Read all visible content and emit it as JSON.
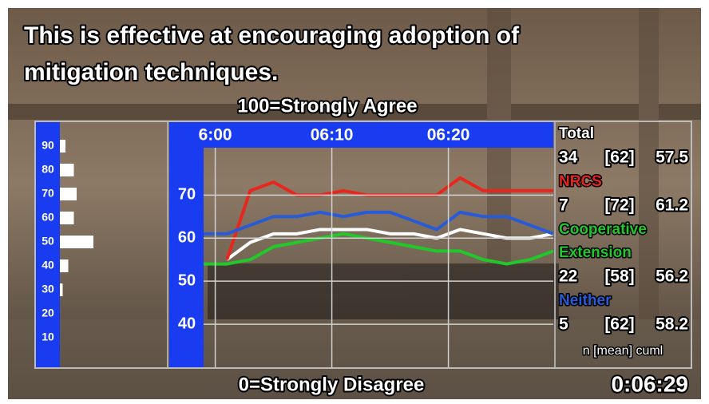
{
  "caption": [
    "This is  effective at encouraging adoption of",
    "mitigation techniques."
  ],
  "timer": "0:06:29",
  "chart_data": [
    {
      "type": "hbar",
      "categories": [
        "90",
        "80",
        "70",
        "60",
        "50",
        "40",
        "30",
        "20",
        "10"
      ],
      "values": [
        2,
        5,
        6,
        5,
        12,
        3,
        1,
        0,
        0
      ],
      "color": "#ffffff"
    },
    {
      "type": "line",
      "top_label": "100=Strongly Agree",
      "bottom_label": "0=Strongly Disagree",
      "x": [
        359,
        361,
        363,
        365,
        367,
        369,
        371,
        373,
        375,
        377,
        379,
        381,
        383,
        385,
        387,
        389
      ],
      "xlim": [
        359,
        389
      ],
      "xticks": [
        {
          "value": 360,
          "label": "6:00"
        },
        {
          "value": 370,
          "label": "06:10"
        },
        {
          "value": 380,
          "label": "06:20"
        }
      ],
      "ylim": [
        30,
        81
      ],
      "yticks": [
        40,
        50,
        60,
        70
      ],
      "grid": true,
      "series": [
        {
          "name": "Total",
          "color": "#ffffff",
          "values": [
            null,
            55,
            59,
            61,
            61,
            62,
            62,
            62,
            61,
            61,
            60,
            62,
            61,
            60,
            60,
            61
          ]
        },
        {
          "name": "NRCS",
          "color": "#e8261c",
          "values": [
            null,
            55,
            71,
            73,
            70,
            70,
            71,
            70,
            70,
            70,
            70,
            74,
            71,
            71,
            71,
            71
          ]
        },
        {
          "name": "Cooperative Extension",
          "color": "#22c72a",
          "values": [
            54,
            54,
            55,
            58,
            59,
            60,
            61,
            60,
            59,
            58,
            57,
            57,
            55,
            54,
            55,
            57
          ]
        },
        {
          "name": "Neither",
          "color": "#2a5bd6",
          "values": [
            61,
            61,
            63,
            65,
            65,
            66,
            65,
            66,
            66,
            64,
            62,
            66,
            65,
            65,
            63,
            61
          ]
        }
      ],
      "stats": [
        {
          "n": 34,
          "mean": "[62]",
          "cuml": 57.5
        },
        {
          "n": 7,
          "mean": "[72]",
          "cuml": 61.2
        },
        {
          "n": 22,
          "mean": "[58]",
          "cuml": 56.2
        },
        {
          "n": 5,
          "mean": "[62]",
          "cuml": 58.2
        }
      ],
      "stats_header": "n [mean] cuml"
    }
  ]
}
